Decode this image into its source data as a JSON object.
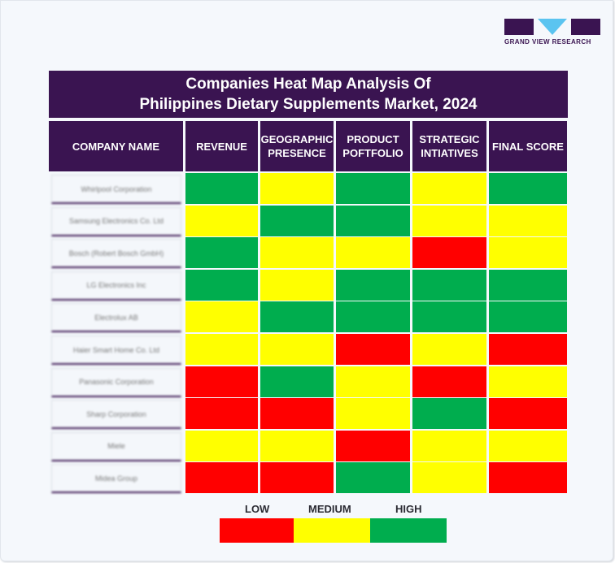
{
  "logo": {
    "text": "GRAND VIEW RESEARCH"
  },
  "title": {
    "line1": "Companies Heat Map Analysis Of",
    "line2": "Philippines Dietary Supplements Market, 2024"
  },
  "colors": {
    "header_bg": "#3a1451",
    "low": "#ff0000",
    "medium": "#ffff00",
    "high": "#00ad4e"
  },
  "columns": [
    "COMPANY NAME",
    "REVENUE",
    "GEOGRAPHIC PRESENCE",
    "PRODUCT POFTFOLIO",
    "STRATEGIC INTIATIVES",
    "FINAL SCORE"
  ],
  "legend": {
    "low": "LOW",
    "medium": "MEDIUM",
    "high": "HIGH"
  },
  "chart_data": {
    "type": "heatmap",
    "title": "Companies Heat Map Analysis Of Philippines Dietary Supplements Market, 2024",
    "x": [
      "REVENUE",
      "GEOGRAPHIC PRESENCE",
      "PRODUCT POFTFOLIO",
      "STRATEGIC INTIATIVES",
      "FINAL SCORE"
    ],
    "y": [
      "Whirlpool Corporation",
      "Samsung Electronics Co. Ltd",
      "Bosch (Robert Bosch GmbH)",
      "LG Electronics Inc",
      "Electrolux AB",
      "Haier Smart Home Co. Ltd",
      "Panasonic Corporation",
      "Sharp Corporation",
      "Miele",
      "Midea Group"
    ],
    "scale": [
      "LOW",
      "MEDIUM",
      "HIGH"
    ],
    "values": [
      [
        "HIGH",
        "MEDIUM",
        "HIGH",
        "MEDIUM",
        "HIGH"
      ],
      [
        "MEDIUM",
        "HIGH",
        "HIGH",
        "MEDIUM",
        "MEDIUM"
      ],
      [
        "HIGH",
        "MEDIUM",
        "MEDIUM",
        "LOW",
        "MEDIUM"
      ],
      [
        "HIGH",
        "MEDIUM",
        "HIGH",
        "HIGH",
        "HIGH"
      ],
      [
        "MEDIUM",
        "HIGH",
        "HIGH",
        "HIGH",
        "HIGH"
      ],
      [
        "MEDIUM",
        "MEDIUM",
        "LOW",
        "MEDIUM",
        "LOW"
      ],
      [
        "LOW",
        "HIGH",
        "MEDIUM",
        "LOW",
        "MEDIUM"
      ],
      [
        "LOW",
        "LOW",
        "MEDIUM",
        "HIGH",
        "LOW"
      ],
      [
        "MEDIUM",
        "MEDIUM",
        "LOW",
        "MEDIUM",
        "MEDIUM"
      ],
      [
        "LOW",
        "LOW",
        "HIGH",
        "MEDIUM",
        "LOW"
      ]
    ],
    "legend_position": "bottom"
  }
}
